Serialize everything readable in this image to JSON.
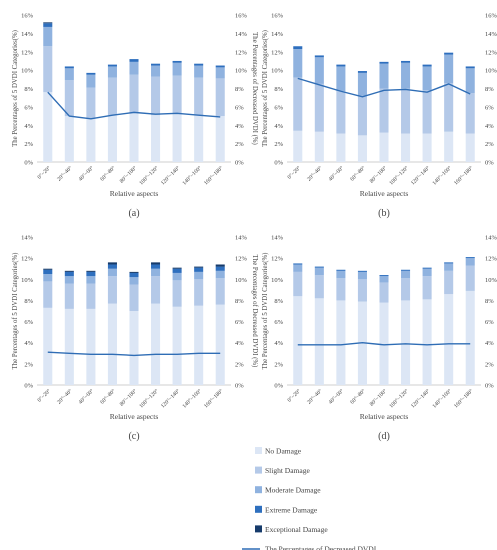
{
  "colors": {
    "no_damage": "#dce6f5",
    "slight_damage": "#b4c9e8",
    "moderate_damage": "#8fb2df",
    "extreme_damage": "#2e6fbe",
    "exceptional_damage": "#163b6b",
    "line": "#2f6db5",
    "axis": "#bfbfbf"
  },
  "legend": {
    "items": [
      {
        "key": "no_damage",
        "label": "No Damage",
        "kind": "swatch"
      },
      {
        "key": "slight_damage",
        "label": "Slight Damage",
        "kind": "swatch"
      },
      {
        "key": "moderate_damage",
        "label": "Moderate Damage",
        "kind": "swatch"
      },
      {
        "key": "extreme_damage",
        "label": "Extreme Damage",
        "kind": "swatch"
      },
      {
        "key": "exceptional_damage",
        "label": "Exceptional Damage",
        "kind": "swatch"
      },
      {
        "key": "line",
        "label": "The Percentages of Decreased DVDI",
        "kind": "line"
      }
    ]
  },
  "chart_data": [
    {
      "type": "bar",
      "panel_label": "(a)",
      "categories": [
        "0°~20°",
        "20°~40°",
        "40°~60°",
        "60°~80°",
        "80°~100°",
        "100°~120°",
        "120°~140°",
        "140°~160°",
        "160°~180°"
      ],
      "xlabel": "Relative aspects",
      "ylabel": "The Percentages of 5 DVDI Categories(%)",
      "y2label": "The Percentages of Decreased DVDI (%)",
      "ylim": [
        0,
        16
      ],
      "yticks": [
        "0%",
        "2%",
        "4%",
        "6%",
        "8%",
        "10%",
        "12%",
        "14%",
        "16%"
      ],
      "series": [
        {
          "name": "No Damage",
          "values": [
            7.6,
            5.0,
            4.7,
            5.1,
            5.4,
            5.1,
            5.2,
            5.1,
            5.0
          ]
        },
        {
          "name": "Slight Damage",
          "values": [
            5.0,
            3.9,
            3.4,
            4.1,
            4.1,
            4.2,
            4.2,
            4.1,
            4.1
          ]
        },
        {
          "name": "Moderate Damage",
          "values": [
            2.1,
            1.3,
            1.4,
            1.2,
            1.4,
            1.2,
            1.4,
            1.3,
            1.2
          ]
        },
        {
          "name": "Extreme Damage",
          "values": [
            0.4,
            0.2,
            0.2,
            0.2,
            0.3,
            0.2,
            0.2,
            0.2,
            0.2
          ]
        },
        {
          "name": "Exceptional Damage",
          "values": [
            0.1,
            0.0,
            0.0,
            0.0,
            0.0,
            0.0,
            0.0,
            0.0,
            0.0
          ]
        }
      ],
      "line": {
        "name": "The Percentages of Decreased DVDI",
        "values": [
          7.6,
          5.0,
          4.7,
          5.1,
          5.4,
          5.2,
          5.3,
          5.1,
          4.9
        ]
      }
    },
    {
      "type": "bar",
      "panel_label": "(b)",
      "categories": [
        "0°~20°",
        "20°~40°",
        "40°~60°",
        "60°~80°",
        "80°~100°",
        "100°~120°",
        "120°~140°",
        "140°~160°",
        "160°~180°"
      ],
      "xlabel": "Relative aspects",
      "ylabel": "The Percentages of 5 DVDI Categories(%)",
      "y2label": "The Percentages of Decreased DVDI (%)",
      "ylim": [
        0,
        16
      ],
      "yticks": [
        "0%",
        "2%",
        "4%",
        "6%",
        "8%",
        "10%",
        "12%",
        "14%",
        "16%"
      ],
      "series": [
        {
          "name": "No Damage",
          "values": [
            3.4,
            3.3,
            3.1,
            2.9,
            3.2,
            3.1,
            3.1,
            3.3,
            3.1
          ]
        },
        {
          "name": "Slight Damage",
          "values": [
            5.8,
            5.2,
            4.6,
            4.3,
            4.8,
            4.9,
            4.7,
            5.3,
            4.4
          ]
        },
        {
          "name": "Moderate Damage",
          "values": [
            3.1,
            2.9,
            2.7,
            2.5,
            2.7,
            2.8,
            2.6,
            3.1,
            2.7
          ]
        },
        {
          "name": "Extreme Damage",
          "values": [
            0.3,
            0.2,
            0.2,
            0.2,
            0.2,
            0.2,
            0.2,
            0.2,
            0.2
          ]
        },
        {
          "name": "Exceptional Damage",
          "values": [
            0.0,
            0.0,
            0.0,
            0.0,
            0.0,
            0.0,
            0.0,
            0.0,
            0.0
          ]
        }
      ],
      "line": {
        "name": "The Percentages of Decreased DVDI",
        "values": [
          9.1,
          8.4,
          7.7,
          7.1,
          7.8,
          7.9,
          7.6,
          8.5,
          7.4
        ]
      }
    },
    {
      "type": "bar",
      "panel_label": "(c)",
      "categories": [
        "0°~20°",
        "20°~40°",
        "40°~60°",
        "60°~80°",
        "80°~100°",
        "100°~120°",
        "120°~140°",
        "140°~160°",
        "160°~180°"
      ],
      "xlabel": "Relative aspects",
      "ylabel": "The Percentages of 5 DVDI Categories(%)",
      "y2label": "The Percentages of Decreased DVDI (%)",
      "ylim": [
        0,
        14
      ],
      "yticks": [
        "0%",
        "2%",
        "4%",
        "6%",
        "8%",
        "10%",
        "12%",
        "14%"
      ],
      "series": [
        {
          "name": "No Damage",
          "values": [
            7.3,
            7.2,
            7.2,
            7.7,
            7.0,
            7.7,
            7.4,
            7.5,
            7.6
          ]
        },
        {
          "name": "Slight Damage",
          "values": [
            2.5,
            2.4,
            2.4,
            2.6,
            2.5,
            2.6,
            2.5,
            2.5,
            2.5
          ]
        },
        {
          "name": "Moderate Damage",
          "values": [
            0.7,
            0.7,
            0.7,
            0.7,
            0.7,
            0.7,
            0.7,
            0.7,
            0.7
          ]
        },
        {
          "name": "Extreme Damage",
          "values": [
            0.4,
            0.4,
            0.4,
            0.4,
            0.4,
            0.4,
            0.4,
            0.4,
            0.4
          ]
        },
        {
          "name": "Exceptional Damage",
          "values": [
            0.1,
            0.1,
            0.1,
            0.2,
            0.1,
            0.2,
            0.1,
            0.1,
            0.2
          ]
        }
      ],
      "line": {
        "name": "The Percentages of Decreased DVDI",
        "values": [
          3.1,
          3.0,
          2.9,
          2.9,
          2.8,
          2.9,
          2.9,
          3.0,
          3.0
        ]
      }
    },
    {
      "type": "bar",
      "panel_label": "(d)",
      "categories": [
        "0°~20°",
        "20°~40°",
        "40°~60°",
        "60°~80°",
        "80°~100°",
        "100°~120°",
        "120°~140°",
        "140°~160°",
        "160°~180°"
      ],
      "xlabel": "Relative aspects",
      "ylabel": "The Percentages of 5 DVDI Categories(%)",
      "y2label": "The Percentages of Decreased DVDI (%)",
      "ylim": [
        0,
        14
      ],
      "yticks": [
        "0%",
        "2%",
        "4%",
        "6%",
        "8%",
        "10%",
        "12%",
        "14%"
      ],
      "series": [
        {
          "name": "No Damage",
          "values": [
            8.4,
            8.2,
            8.0,
            7.9,
            7.8,
            8.0,
            8.1,
            8.6,
            8.9
          ]
        },
        {
          "name": "Slight Damage",
          "values": [
            2.3,
            2.2,
            2.1,
            2.1,
            1.9,
            2.1,
            2.2,
            2.2,
            2.4
          ]
        },
        {
          "name": "Moderate Damage",
          "values": [
            0.7,
            0.7,
            0.7,
            0.7,
            0.6,
            0.7,
            0.7,
            0.7,
            0.7
          ]
        },
        {
          "name": "Extreme Damage",
          "values": [
            0.1,
            0.1,
            0.1,
            0.1,
            0.1,
            0.1,
            0.1,
            0.1,
            0.1
          ]
        },
        {
          "name": "Exceptional Damage",
          "values": [
            0.0,
            0.0,
            0.0,
            0.0,
            0.0,
            0.0,
            0.0,
            0.0,
            0.0
          ]
        }
      ],
      "line": {
        "name": "The Percentages of Decreased DVDI",
        "values": [
          3.8,
          3.8,
          3.8,
          4.0,
          3.8,
          3.9,
          3.8,
          3.9,
          3.9
        ]
      }
    }
  ]
}
